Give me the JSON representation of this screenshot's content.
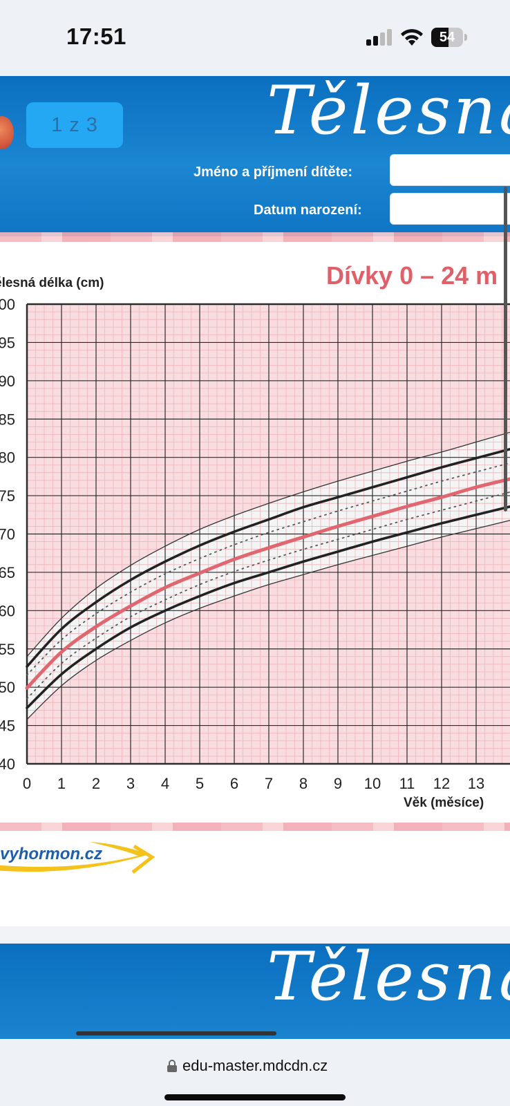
{
  "status_bar": {
    "time": "17:51",
    "battery": "54",
    "battery_fraction": 0.54
  },
  "document": {
    "pager": "1 z 3",
    "brand_title": "Tělesná",
    "form": {
      "name_label": "Jméno a příjmení dítěte:",
      "birthdate_label": "Datum narození:"
    },
    "footer_logo": "vyhormon.cz"
  },
  "chart_data": {
    "type": "line",
    "title": "Dívky 0 – 24 m",
    "xlabel": "Věk (měsíce)",
    "ylabel": "ělesná délka (cm)",
    "x_ticks": [
      "0",
      "1",
      "2",
      "3",
      "4",
      "5",
      "6",
      "7",
      "8",
      "9",
      "10",
      "11",
      "12",
      "13"
    ],
    "y_ticks": [
      "00",
      "95",
      "90",
      "85",
      "80",
      "75",
      "70",
      "65",
      "60",
      "55",
      "50",
      "45",
      "40"
    ],
    "xlim": [
      0,
      14
    ],
    "ylim": [
      40,
      100
    ],
    "grid": true,
    "x": [
      0,
      1,
      2,
      3,
      4,
      5,
      6,
      7,
      8,
      9,
      10,
      11,
      12,
      13,
      14
    ],
    "series": [
      {
        "style": "thin",
        "color": "#333333",
        "values": [
          54.0,
          59.0,
          62.9,
          65.9,
          68.4,
          70.6,
          72.4,
          74.0,
          75.5,
          76.9,
          78.2,
          79.5,
          80.7,
          82.0,
          83.3
        ]
      },
      {
        "style": "thick",
        "color": "#222222",
        "values": [
          52.7,
          57.6,
          61.1,
          64.0,
          66.4,
          68.5,
          70.3,
          71.9,
          73.5,
          74.8,
          76.1,
          77.4,
          78.7,
          79.9,
          81.1
        ]
      },
      {
        "style": "dotted",
        "color": "#555555",
        "values": [
          51.6,
          56.2,
          59.6,
          62.4,
          64.8,
          66.8,
          68.6,
          70.2,
          71.6,
          73.0,
          74.3,
          75.6,
          76.9,
          78.1,
          79.3
        ]
      },
      {
        "style": "median",
        "color": "#e06670",
        "values": [
          49.9,
          54.6,
          57.9,
          60.6,
          63.0,
          64.9,
          66.7,
          68.2,
          69.6,
          71.0,
          72.3,
          73.6,
          74.8,
          76.1,
          77.2
        ]
      },
      {
        "style": "dotted",
        "color": "#555555",
        "values": [
          48.5,
          53.1,
          56.4,
          59.2,
          61.4,
          63.4,
          65.1,
          66.6,
          68.0,
          69.3,
          70.6,
          71.9,
          73.1,
          74.3,
          75.5
        ]
      },
      {
        "style": "thick",
        "color": "#222222",
        "values": [
          47.3,
          51.7,
          55.0,
          57.8,
          60.0,
          61.9,
          63.6,
          65.0,
          66.4,
          67.7,
          69.0,
          70.2,
          71.4,
          72.5,
          73.6
        ]
      },
      {
        "style": "thin",
        "color": "#333333",
        "values": [
          45.8,
          50.2,
          53.5,
          56.1,
          58.4,
          60.3,
          61.9,
          63.4,
          64.7,
          66.0,
          67.2,
          68.4,
          69.6,
          70.7,
          71.8
        ]
      }
    ],
    "colors": {
      "background": "#f9dcdf",
      "minor_grid": "#eeb5bb",
      "major_grid": "#2a2a2a",
      "band": "#f4f4f4"
    }
  },
  "browser": {
    "url": "edu-master.mdcdn.cz"
  }
}
